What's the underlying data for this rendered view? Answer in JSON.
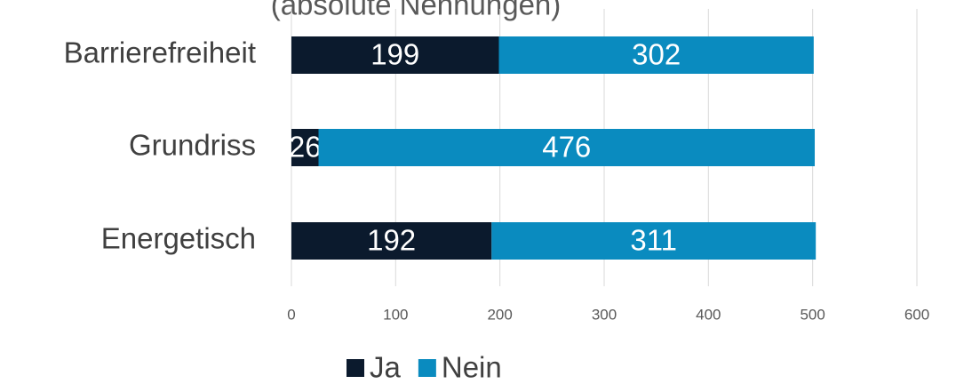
{
  "chart_data": {
    "type": "stacked-bar-horizontal",
    "title": "(absolute Nennungen)",
    "categories": [
      "Barrierefreiheit",
      "Grundriss",
      "Energetisch"
    ],
    "series": [
      {
        "name": "Ja",
        "color": "#0b1a2d",
        "values": [
          199,
          26,
          192
        ]
      },
      {
        "name": "Nein",
        "color": "#0a8bbf",
        "values": [
          302,
          476,
          311
        ]
      }
    ],
    "xlim": [
      0,
      600
    ],
    "xticks": [
      0,
      100,
      200,
      300,
      400,
      500,
      600
    ],
    "grid": true,
    "legend": "bottom"
  }
}
